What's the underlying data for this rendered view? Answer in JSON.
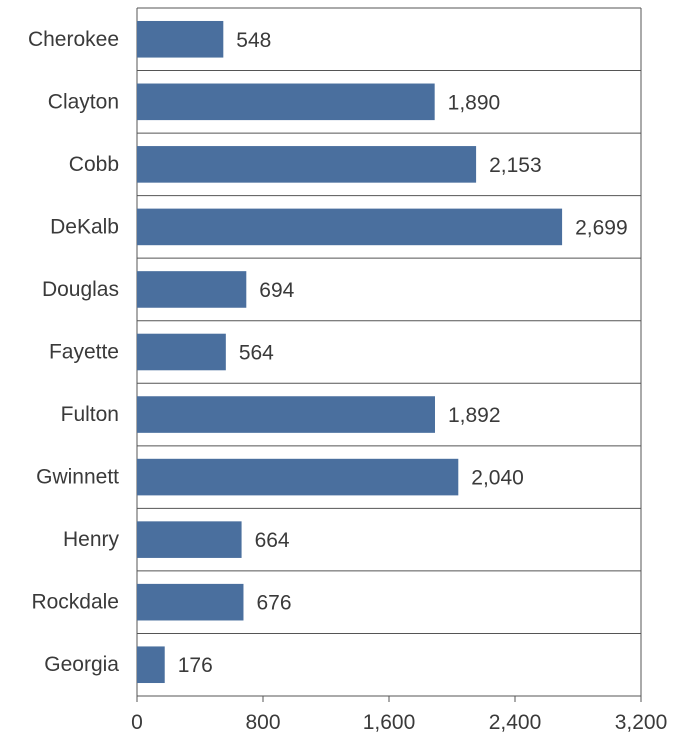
{
  "chart_data": {
    "type": "bar",
    "orientation": "horizontal",
    "categories": [
      "Cherokee",
      "Clayton",
      "Cobb",
      "DeKalb",
      "Douglas",
      "Fayette",
      "Fulton",
      "Gwinnett",
      "Henry",
      "Rockdale",
      "Georgia"
    ],
    "values": [
      548,
      1890,
      2153,
      2699,
      694,
      564,
      1892,
      2040,
      664,
      676,
      176
    ],
    "value_labels": [
      "548",
      "1,890",
      "2,153",
      "2,699",
      "694",
      "564",
      "1,892",
      "2,040",
      "664",
      "676",
      "176"
    ],
    "xlim": [
      0,
      3200
    ],
    "x_ticks": [
      0,
      800,
      1600,
      2400,
      3200
    ],
    "x_tick_labels": [
      "0",
      "800",
      "1,600",
      "2,400",
      "3,200"
    ],
    "title": "",
    "xlabel": "",
    "ylabel": "",
    "grid": "horizontal separators between categories",
    "legend": "none",
    "colors": {
      "bar": "#4a6f9e",
      "grid": "#555555",
      "text": "#3a3a3a"
    }
  }
}
